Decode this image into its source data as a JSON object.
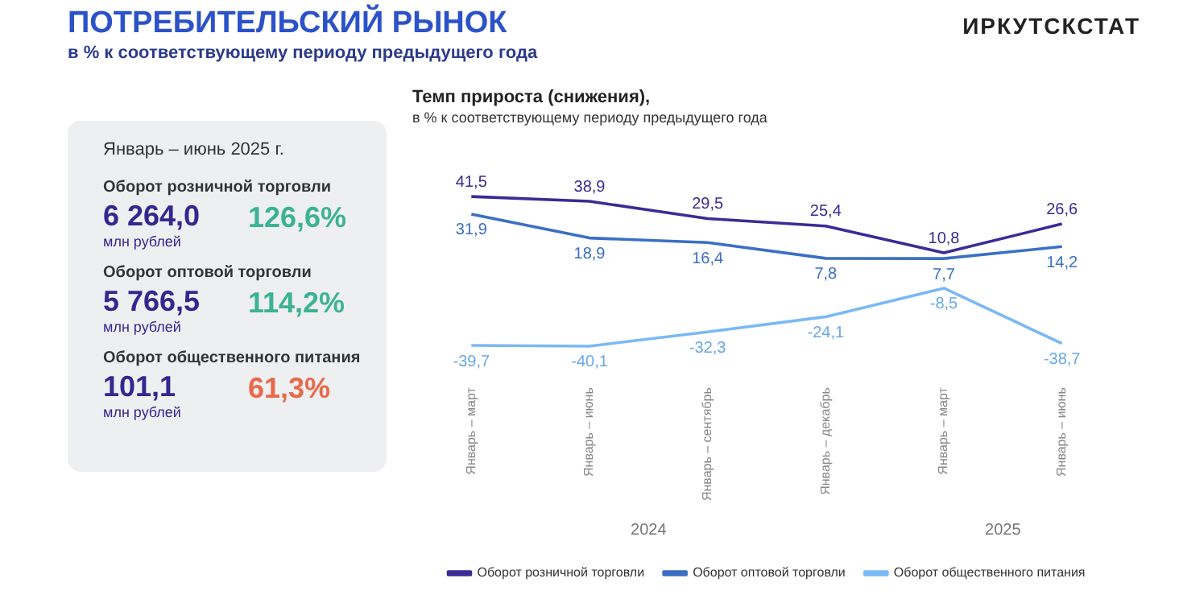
{
  "chart_data": [
    {
      "type": "other",
      "title": "ПОТРЕБИТЕЛЬСКИЙ РЫНОК",
      "subtitle": "в % к соответствующему периоду предыдущего года",
      "annotations": [
        "ИРКУТСКСТАТ",
        "Январь – июнь 2025 г.",
        "Оборот розничной торговли",
        "6 264,0",
        "млн рублей",
        "126,6%",
        "Оборот оптовой торговли",
        "5 766,5",
        "млн рублей",
        "114,2%",
        "Оборот общественного питания",
        "101,1",
        "млн рублей",
        "61,3%"
      ]
    },
    {
      "type": "line",
      "title": "Темп прироста (снижения),",
      "subtitle": "в % к соответствующему периоду предыдущего года",
      "categories": [
        "Январь – март",
        "Январь – июнь",
        "Январь – сентябрь",
        "Январь – декабрь",
        "Январь – март",
        "Январь – июнь"
      ],
      "series": [
        {
          "name": "Оборот розничной торговли",
          "color": "#3b2b94",
          "values": [
            41.5,
            38.9,
            29.5,
            25.4,
            10.8,
            26.6
          ],
          "value_labels": [
            "41,5",
            "38,9",
            "29,5",
            "25,4",
            "10,8",
            "26,6"
          ]
        },
        {
          "name": "Оборот оптовой торговли",
          "color": "#3a6fc4",
          "values": [
            31.9,
            18.9,
            16.4,
            7.8,
            7.7,
            14.2
          ],
          "value_labels": [
            "31,9",
            "18,9",
            "16,4",
            "7,8",
            "7,7",
            "14,2"
          ]
        },
        {
          "name": "Оборот общественного питания",
          "color": "#7ab8f5",
          "values": [
            -39.7,
            -40.1,
            -32.3,
            -24.1,
            -8.5,
            -38.7
          ],
          "value_labels": [
            "-39,7",
            "-40,1",
            "-32,3",
            "-24,1",
            "-8,5",
            "-38,7"
          ]
        }
      ],
      "marker": "none",
      "legend": "bottom",
      "grid": false,
      "annotations": [
        "2024",
        "2025"
      ]
    }
  ]
}
